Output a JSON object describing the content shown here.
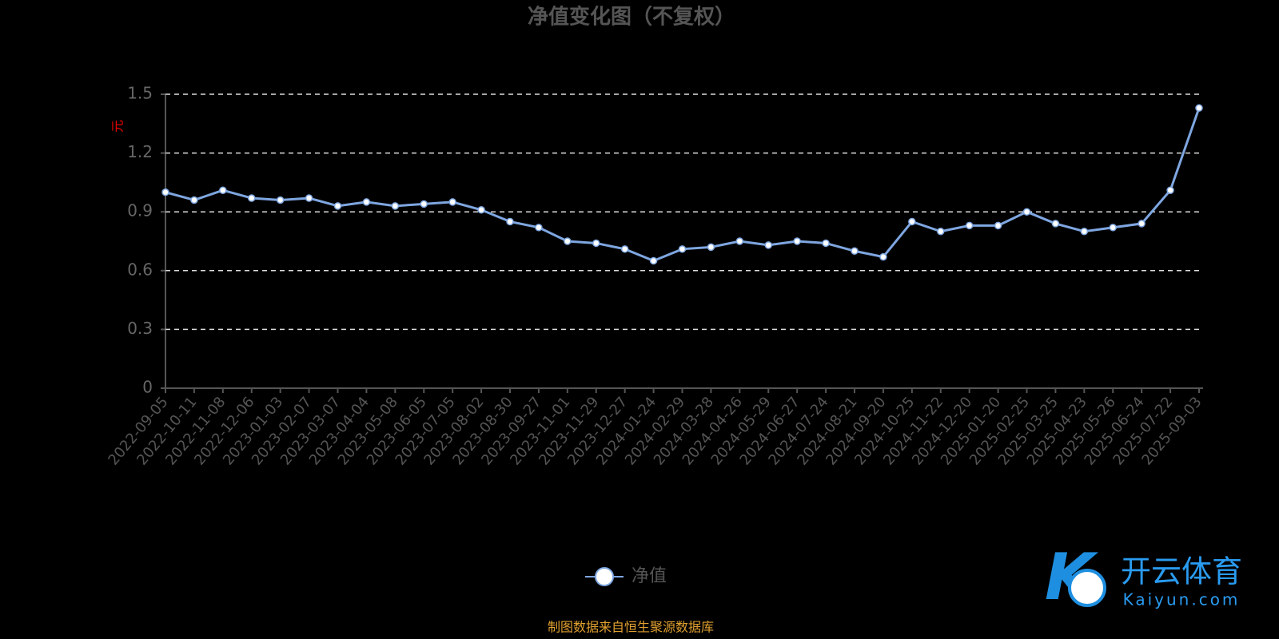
{
  "chart_data": {
    "type": "line",
    "title": "净值变化图（不复权）",
    "y_label": "元",
    "categories": [
      "2022-09-05",
      "2022-10-11",
      "2022-11-08",
      "2022-12-06",
      "2023-01-03",
      "2023-02-07",
      "2023-03-07",
      "2023-04-04",
      "2023-05-08",
      "2023-06-05",
      "2023-07-05",
      "2023-08-02",
      "2023-08-30",
      "2023-09-27",
      "2023-11-01",
      "2023-11-29",
      "2023-12-27",
      "2024-01-24",
      "2024-02-29",
      "2024-03-28",
      "2024-04-26",
      "2024-05-29",
      "2024-06-27",
      "2024-07-24",
      "2024-08-21",
      "2024-09-20",
      "2024-10-25",
      "2024-11-22",
      "2024-12-20",
      "2025-01-20",
      "2025-02-25",
      "2025-03-25",
      "2025-04-23",
      "2025-05-26",
      "2025-06-24",
      "2025-07-22",
      "2025-09-03"
    ],
    "series": [
      {
        "name": "净值",
        "color": "#7ea6e0",
        "values": [
          1.0,
          0.96,
          1.01,
          0.97,
          0.96,
          0.97,
          0.93,
          0.95,
          0.93,
          0.94,
          0.95,
          0.91,
          0.85,
          0.82,
          0.75,
          0.74,
          0.71,
          0.65,
          0.71,
          0.72,
          0.75,
          0.73,
          0.75,
          0.74,
          0.7,
          0.67,
          0.85,
          0.8,
          0.83,
          0.83,
          0.9,
          0.84,
          0.8,
          0.82,
          0.84,
          1.01,
          1.43
        ]
      }
    ],
    "ylim": [
      0,
      1.5
    ],
    "yticks": [
      0,
      0.3,
      0.6,
      0.9,
      1.2,
      1.5
    ],
    "grid": true,
    "legend": "bottom",
    "source": "制图数据来自恒生聚源数据库"
  },
  "watermark": {
    "brand": "开云体育",
    "url": "Kaiyun.com"
  }
}
